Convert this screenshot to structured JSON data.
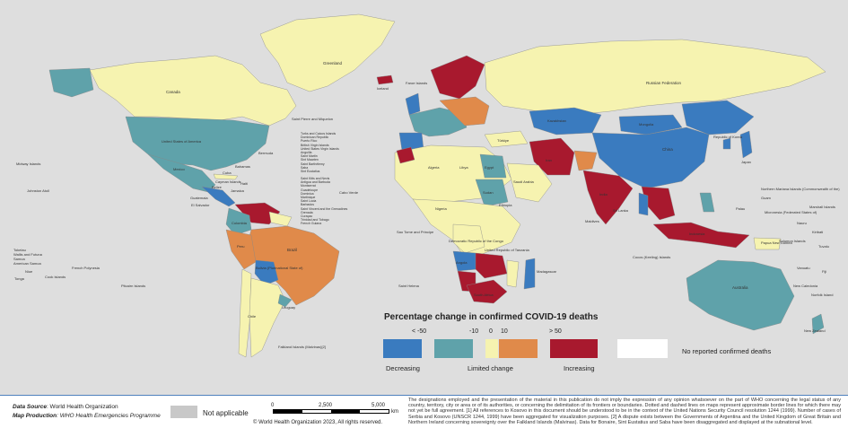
{
  "colors": {
    "decreasing_strong": "#3a7bbf",
    "decreasing": "#5fa2aa",
    "limited": "#f6f3b0",
    "increasing": "#e08a4a",
    "increasing_strong": "#a8192e",
    "no_report": "#ffffff",
    "not_applicable": "#c8c8c8",
    "ocean": "#dedede"
  },
  "map_labels": {
    "greenland": "Greenland",
    "canada": "Canada",
    "usa": "United States of America",
    "mexico": "Mexico",
    "cuba": "Cuba",
    "bahamas": "Bahamas",
    "bermuda": "Bermuda",
    "saint_pierre": "Saint Pierre and Miquelon",
    "caribbean_list": "Turks and Caicos Islands\nDominican Republic\nPuerto Rico\nBritish Virgin Islands\nUnited States Virgin Islands\nAnguilla\nSaint Martin\nSint Maarten\nSaint Barthélemy\nSaba\nSint Eustatius",
    "caribbean_list2": "Saint Kitts and Nevis\nAntigua and Barbuda\nMontserrat\nGuadeloupe\nDominica\nMartinique\nSaint Lucia\nBarbados\nSaint Vincent and the Grenadines\nGrenada\nCuraçao\nTrinidad and Tobago\nFrench Guiana",
    "el_salvador": "El Salvador",
    "guatemala": "Guatemala",
    "belize": "Belize",
    "cayman": "Cayman Islands",
    "jamaica": "Jamaica",
    "haiti": "Haiti",
    "colombia": "Colombia",
    "peru": "Peru",
    "brazil": "Brazil",
    "bolivia": "Bolivia (Plurinational State of)",
    "chile": "Chile",
    "uruguay": "Uruguay",
    "falklands": "Falkland Islands (Malvinas)[2]",
    "midway": "Midway Islands",
    "johnston": "Johnston Atoll",
    "tokelau": "Tokelau\nWallis and Futuna\nSamoa\nAmerican Samoa",
    "cook": "Cook Islands",
    "niue": "Niue",
    "tonga": "Tonga",
    "french_polynesia": "French Polynesia",
    "pitcairn": "Pitcairn Islands",
    "cabo_verde": "Cabo Verde",
    "faroe": "Faroe Islands",
    "iceland": "Iceland",
    "russia": "Russian Federation",
    "mongolia": "Mongolia",
    "china": "China",
    "kazakhstan": "Kazakhstan",
    "india": "India",
    "japan": "Japan",
    "korea": "Republic of Korea",
    "algeria": "Algeria",
    "libya": "Libya",
    "egypt": "Egypt",
    "saudi": "Saudi Arabia",
    "iran": "Iran",
    "turkey": "Türkiye",
    "sudan": "Sudan",
    "ethiopia": "Ethiopia",
    "nigeria": "Nigeria",
    "drc": "Democratic Republic of the Congo",
    "tanzania": "United Republic of Tanzania",
    "angola": "Angola",
    "south_africa": "South Africa",
    "madagascar": "Madagascar",
    "st_helena": "Saint Helena",
    "sao_tome": "Sao Tome and Principe",
    "australia": "Australia",
    "new_zealand": "New Zealand",
    "papua": "Papua New Guinea",
    "indonesia": "Indonesia",
    "cocos": "Cocos (Keeling) Islands",
    "sri_lanka": "Sri Lanka",
    "maldives": "Maldives",
    "n_mariana": "Northern Mariana Islands (Commonwealth of the)",
    "guam": "Guam",
    "palau": "Palau",
    "micronesia": "Micronesia (Federated States of)",
    "marshall": "Marshall Islands",
    "nauru": "Nauru",
    "kiribati": "Kiribati",
    "solomon": "Solomon Islands",
    "tuvalu": "Tuvalu",
    "vanuatu": "Vanuatu",
    "fiji": "Fiji",
    "new_caledonia": "New Caledonia",
    "norfolk": "Norfolk Island"
  },
  "legend": {
    "title": "Percentage change in confirmed COVID-19 deaths",
    "ticks": [
      "< -50",
      "-10",
      "0",
      "10",
      "> 50"
    ],
    "category_labels": [
      "Decreasing",
      "Limited change",
      "Increasing"
    ],
    "no_report_label": "No reported confirmed deaths"
  },
  "footer": {
    "data_source_key": "Data Source",
    "data_source_value": ": World Health Organization",
    "map_production_key": "Map Production",
    "map_production_value": ": WHO Health Emergencies Programme",
    "not_applicable": "Not applicable",
    "scale_ticks": [
      "0",
      "2,500",
      "5,000"
    ],
    "scale_unit": "km",
    "copyright": "© World Health Organization  2023,  All rights reserved.",
    "disclaimer": "The designations employed and the presentation of the material in this publication do not imply the expression of any opinion whatsoever on the part of WHO concerning the legal status of any country, territory, city or area or of its authorities, or concerning the delimitation of its frontiers or boundaries. Dotted and dashed lines on maps represent approximate border lines for which there may not yet be full agreement. [1] All references to Kosovo in this document should be understood to be in the context of the United Nations Security Council resolution 1244 (1999). Number of cases of Serbia and Kosovo (UNSCR 1244, 1999) have been aggregated for visualization purposes. [2] A dispute exists between the Governments of Argentina and the United Kingdom of Great Britain and Northern Ireland concerning sovereignty over the Falkland Islands (Malvinas). Data for Bonaire, Sint Eustatius and Saba have been disaggregated and displayed at the subnational level."
  }
}
